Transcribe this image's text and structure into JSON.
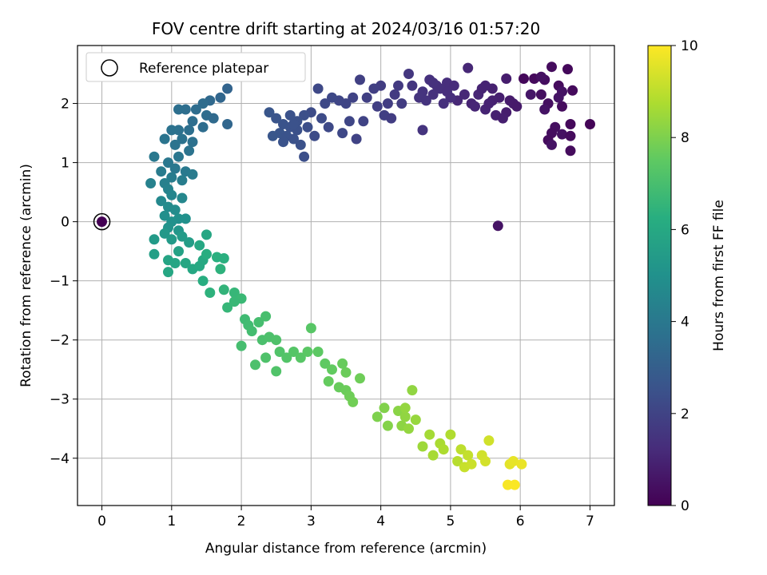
{
  "chart_data": {
    "type": "scatter",
    "title": "FOV centre drift starting at 2024/03/16 01:57:20",
    "xlabel": "Angular distance from reference (arcmin)",
    "ylabel": "Rotation from reference (arcmin)",
    "xlim": [
      -0.35,
      7.35
    ],
    "ylim": [
      -4.8,
      2.98
    ],
    "xticks": [
      0,
      1,
      2,
      3,
      4,
      5,
      6,
      7
    ],
    "yticks": [
      -4,
      -3,
      -2,
      -1,
      0,
      1,
      2
    ],
    "grid": true,
    "colormap": "viridis",
    "colorbar": {
      "label": "Hours from first FF file",
      "range": [
        0,
        10
      ],
      "ticks": [
        0,
        2,
        4,
        6,
        8,
        10
      ]
    },
    "legend": {
      "position": "top-left",
      "entries": [
        {
          "label": "Reference platepar",
          "marker": "open-circle"
        }
      ]
    },
    "reference_point": {
      "x": 0,
      "y": 0
    },
    "series": [
      {
        "points": [
          [
            0.0,
            0.0,
            0.0
          ],
          [
            5.68,
            -0.07,
            0.5
          ],
          [
            6.05,
            2.42,
            0.2
          ],
          [
            6.2,
            2.42,
            0.25
          ],
          [
            6.35,
            2.4,
            0.35
          ],
          [
            6.45,
            2.62,
            0.3
          ],
          [
            6.68,
            2.58,
            0.2
          ],
          [
            6.3,
            2.15,
            0.4
          ],
          [
            6.55,
            2.3,
            0.3
          ],
          [
            6.75,
            2.22,
            0.25
          ],
          [
            6.4,
            2.0,
            0.4
          ],
          [
            6.6,
            1.95,
            0.3
          ],
          [
            6.35,
            1.9,
            0.5
          ],
          [
            6.72,
            1.65,
            0.2
          ],
          [
            7.0,
            1.65,
            0.1
          ],
          [
            6.5,
            1.6,
            0.4
          ],
          [
            6.45,
            1.5,
            0.35
          ],
          [
            6.6,
            1.48,
            0.45
          ],
          [
            6.4,
            1.38,
            0.3
          ],
          [
            6.45,
            1.3,
            0.5
          ],
          [
            6.72,
            1.45,
            0.3
          ],
          [
            6.72,
            1.2,
            0.3
          ],
          [
            6.15,
            2.15,
            0.6
          ],
          [
            6.6,
            2.2,
            0.5
          ],
          [
            6.55,
            2.1,
            0.55
          ],
          [
            6.3,
            2.45,
            0.45
          ],
          [
            5.8,
            2.42,
            0.8
          ],
          [
            5.6,
            2.25,
            0.9
          ],
          [
            5.5,
            2.3,
            1.0
          ],
          [
            5.9,
            2.0,
            0.8
          ],
          [
            5.7,
            2.1,
            0.85
          ],
          [
            5.6,
            2.05,
            0.9
          ],
          [
            5.8,
            1.85,
            0.8
          ],
          [
            5.5,
            1.9,
            1.0
          ],
          [
            5.3,
            2.0,
            1.0
          ],
          [
            5.4,
            2.15,
            1.05
          ],
          [
            5.25,
            2.6,
            1.1
          ],
          [
            5.1,
            2.05,
            1.1
          ],
          [
            5.65,
            1.8,
            0.9
          ],
          [
            5.75,
            1.75,
            0.85
          ],
          [
            5.45,
            2.25,
            1.0
          ],
          [
            5.35,
            1.95,
            1.05
          ],
          [
            5.55,
            2.0,
            0.95
          ],
          [
            5.2,
            2.15,
            1.1
          ],
          [
            5.85,
            2.05,
            0.75
          ],
          [
            5.95,
            1.95,
            0.7
          ],
          [
            4.95,
            2.35,
            1.3
          ],
          [
            4.8,
            2.3,
            1.35
          ],
          [
            4.7,
            2.4,
            1.4
          ],
          [
            4.6,
            2.2,
            1.45
          ],
          [
            4.55,
            2.1,
            1.5
          ],
          [
            4.65,
            2.05,
            1.45
          ],
          [
            4.75,
            2.15,
            1.4
          ],
          [
            4.85,
            2.25,
            1.35
          ],
          [
            5.05,
            2.3,
            1.25
          ],
          [
            5.0,
            2.1,
            1.3
          ],
          [
            4.9,
            2.0,
            1.35
          ],
          [
            4.4,
            2.5,
            1.6
          ],
          [
            4.45,
            2.3,
            1.55
          ],
          [
            4.6,
            1.55,
            1.5
          ],
          [
            4.95,
            2.2,
            1.3
          ],
          [
            4.75,
            2.35,
            1.4
          ],
          [
            4.2,
            2.15,
            1.7
          ],
          [
            4.25,
            2.3,
            1.7
          ],
          [
            4.3,
            2.0,
            1.75
          ],
          [
            4.0,
            2.3,
            1.8
          ],
          [
            3.9,
            2.25,
            1.85
          ],
          [
            3.8,
            2.1,
            1.9
          ],
          [
            3.7,
            2.4,
            1.9
          ],
          [
            4.1,
            2.0,
            1.8
          ],
          [
            3.65,
            1.4,
            2.0
          ],
          [
            4.05,
            1.8,
            1.85
          ],
          [
            4.15,
            1.75,
            1.8
          ],
          [
            3.95,
            1.95,
            1.85
          ],
          [
            3.6,
            2.1,
            2.0
          ],
          [
            3.5,
            2.0,
            2.05
          ],
          [
            3.4,
            2.05,
            2.1
          ],
          [
            3.3,
            2.1,
            2.15
          ],
          [
            3.2,
            2.0,
            2.2
          ],
          [
            3.1,
            2.25,
            2.2
          ],
          [
            3.15,
            1.75,
            2.25
          ],
          [
            3.0,
            1.85,
            2.3
          ],
          [
            3.45,
            1.5,
            2.15
          ],
          [
            3.55,
            1.7,
            2.1
          ],
          [
            3.75,
            1.7,
            2.0
          ],
          [
            3.25,
            1.6,
            2.2
          ],
          [
            2.9,
            1.8,
            2.4
          ],
          [
            2.8,
            1.7,
            2.45
          ],
          [
            2.7,
            1.6,
            2.5
          ],
          [
            2.6,
            1.65,
            2.55
          ],
          [
            2.55,
            1.5,
            2.6
          ],
          [
            2.65,
            1.45,
            2.55
          ],
          [
            2.75,
            1.4,
            2.5
          ],
          [
            2.85,
            1.3,
            2.45
          ],
          [
            2.9,
            1.1,
            2.4
          ],
          [
            2.4,
            1.85,
            2.65
          ],
          [
            2.5,
            1.75,
            2.6
          ],
          [
            2.45,
            1.45,
            2.65
          ],
          [
            2.7,
            1.8,
            2.5
          ],
          [
            2.8,
            1.55,
            2.45
          ],
          [
            2.95,
            1.6,
            2.35
          ],
          [
            3.05,
            1.45,
            2.3
          ],
          [
            2.6,
            1.35,
            2.55
          ],
          [
            2.75,
            1.65,
            2.5
          ],
          [
            1.8,
            2.25,
            3.2
          ],
          [
            1.7,
            2.1,
            3.3
          ],
          [
            1.55,
            2.05,
            3.4
          ],
          [
            1.45,
            2.0,
            3.5
          ],
          [
            1.35,
            1.9,
            3.55
          ],
          [
            1.2,
            1.9,
            3.6
          ],
          [
            1.1,
            1.9,
            3.65
          ],
          [
            1.5,
            1.8,
            3.5
          ],
          [
            1.3,
            1.7,
            3.6
          ],
          [
            1.6,
            1.75,
            3.45
          ],
          [
            1.8,
            1.65,
            3.3
          ],
          [
            1.45,
            1.6,
            3.55
          ],
          [
            1.25,
            1.55,
            3.65
          ],
          [
            1.1,
            1.55,
            3.7
          ],
          [
            1.0,
            1.55,
            3.75
          ],
          [
            1.15,
            1.4,
            3.75
          ],
          [
            1.3,
            1.35,
            3.7
          ],
          [
            0.9,
            1.4,
            3.85
          ],
          [
            1.05,
            1.3,
            3.8
          ],
          [
            1.25,
            1.2,
            3.8
          ],
          [
            1.1,
            1.1,
            3.9
          ],
          [
            0.95,
            1.0,
            3.95
          ],
          [
            1.05,
            0.9,
            4.0
          ],
          [
            1.2,
            0.85,
            4.05
          ],
          [
            1.3,
            0.8,
            4.1
          ],
          [
            0.85,
            0.85,
            4.1
          ],
          [
            0.75,
            1.1,
            4.0
          ],
          [
            1.0,
            0.75,
            4.15
          ],
          [
            1.15,
            0.7,
            4.2
          ],
          [
            0.9,
            0.65,
            4.3
          ],
          [
            0.7,
            0.65,
            4.35
          ],
          [
            0.95,
            0.55,
            4.4
          ],
          [
            1.0,
            0.45,
            4.5
          ],
          [
            1.15,
            0.4,
            4.6
          ],
          [
            0.85,
            0.35,
            4.65
          ],
          [
            0.95,
            0.25,
            4.75
          ],
          [
            1.05,
            0.2,
            4.8
          ],
          [
            0.9,
            0.1,
            4.9
          ],
          [
            1.1,
            0.05,
            4.95
          ],
          [
            1.0,
            0.0,
            5.0
          ],
          [
            1.2,
            0.05,
            5.0
          ],
          [
            0.95,
            -0.1,
            5.1
          ],
          [
            1.1,
            -0.15,
            5.2
          ],
          [
            0.9,
            -0.2,
            5.3
          ],
          [
            0.75,
            -0.3,
            5.4
          ],
          [
            1.0,
            -0.3,
            5.4
          ],
          [
            1.15,
            -0.25,
            5.45
          ],
          [
            1.25,
            -0.35,
            5.5
          ],
          [
            0.75,
            -0.55,
            5.6
          ],
          [
            1.1,
            -0.5,
            5.7
          ],
          [
            0.95,
            -0.65,
            5.8
          ],
          [
            1.05,
            -0.7,
            5.85
          ],
          [
            0.95,
            -0.85,
            5.9
          ],
          [
            1.2,
            -0.7,
            5.9
          ],
          [
            1.3,
            -0.8,
            5.95
          ],
          [
            1.4,
            -0.75,
            6.0
          ],
          [
            1.45,
            -0.65,
            6.0
          ],
          [
            1.4,
            -0.4,
            5.95
          ],
          [
            1.5,
            -0.22,
            5.9
          ],
          [
            1.45,
            -1.0,
            6.2
          ],
          [
            1.65,
            -0.6,
            6.3
          ],
          [
            1.75,
            -0.62,
            6.3
          ],
          [
            1.5,
            -0.55,
            6.2
          ],
          [
            1.55,
            -1.2,
            6.4
          ],
          [
            1.7,
            -0.8,
            6.4
          ],
          [
            1.75,
            -1.15,
            6.5
          ],
          [
            1.8,
            -1.45,
            6.6
          ],
          [
            1.9,
            -1.2,
            6.6
          ],
          [
            2.0,
            -1.3,
            6.7
          ],
          [
            1.9,
            -1.35,
            6.65
          ],
          [
            2.05,
            -1.65,
            6.8
          ],
          [
            2.1,
            -1.75,
            6.85
          ],
          [
            2.15,
            -1.85,
            6.9
          ],
          [
            2.0,
            -2.1,
            6.95
          ],
          [
            2.25,
            -1.7,
            6.95
          ],
          [
            2.35,
            -1.6,
            7.0
          ],
          [
            2.3,
            -2.0,
            7.05
          ],
          [
            2.4,
            -1.95,
            7.1
          ],
          [
            2.2,
            -2.42,
            7.1
          ],
          [
            2.35,
            -2.3,
            7.15
          ],
          [
            2.5,
            -2.0,
            7.15
          ],
          [
            2.55,
            -2.2,
            7.2
          ],
          [
            2.5,
            -2.53,
            7.2
          ],
          [
            2.65,
            -2.3,
            7.25
          ],
          [
            2.75,
            -2.2,
            7.3
          ],
          [
            2.85,
            -2.3,
            7.35
          ],
          [
            2.95,
            -2.2,
            7.4
          ],
          [
            3.0,
            -1.8,
            7.35
          ],
          [
            3.1,
            -2.2,
            7.45
          ],
          [
            3.2,
            -2.4,
            7.5
          ],
          [
            3.3,
            -2.5,
            7.55
          ],
          [
            3.25,
            -2.7,
            7.6
          ],
          [
            3.4,
            -2.8,
            7.65
          ],
          [
            3.5,
            -2.85,
            7.7
          ],
          [
            3.55,
            -2.95,
            7.75
          ],
          [
            3.6,
            -3.05,
            7.8
          ],
          [
            3.7,
            -2.65,
            7.75
          ],
          [
            3.5,
            -2.55,
            7.7
          ],
          [
            3.45,
            -2.4,
            7.65
          ],
          [
            3.95,
            -3.3,
            8.0
          ],
          [
            4.05,
            -3.15,
            8.05
          ],
          [
            4.1,
            -3.45,
            8.1
          ],
          [
            4.25,
            -3.2,
            8.2
          ],
          [
            4.3,
            -3.45,
            8.25
          ],
          [
            4.35,
            -3.3,
            8.3
          ],
          [
            4.4,
            -3.5,
            8.35
          ],
          [
            4.45,
            -2.85,
            8.3
          ],
          [
            4.5,
            -3.35,
            8.4
          ],
          [
            4.35,
            -3.15,
            8.35
          ],
          [
            4.6,
            -3.8,
            8.5
          ],
          [
            4.7,
            -3.6,
            8.6
          ],
          [
            4.75,
            -3.95,
            8.65
          ],
          [
            4.85,
            -3.75,
            8.7
          ],
          [
            4.9,
            -3.85,
            8.75
          ],
          [
            5.0,
            -3.6,
            8.8
          ],
          [
            5.1,
            -4.05,
            8.9
          ],
          [
            5.15,
            -3.85,
            9.0
          ],
          [
            5.25,
            -3.95,
            9.1
          ],
          [
            5.2,
            -4.15,
            9.15
          ],
          [
            5.3,
            -4.1,
            9.2
          ],
          [
            5.45,
            -3.95,
            9.3
          ],
          [
            5.5,
            -4.05,
            9.35
          ],
          [
            5.55,
            -3.7,
            9.3
          ],
          [
            5.85,
            -4.1,
            9.6
          ],
          [
            5.9,
            -4.05,
            9.65
          ],
          [
            6.02,
            -4.1,
            9.7
          ],
          [
            5.82,
            -4.45,
            9.9
          ],
          [
            5.92,
            -4.45,
            9.95
          ]
        ]
      }
    ]
  }
}
